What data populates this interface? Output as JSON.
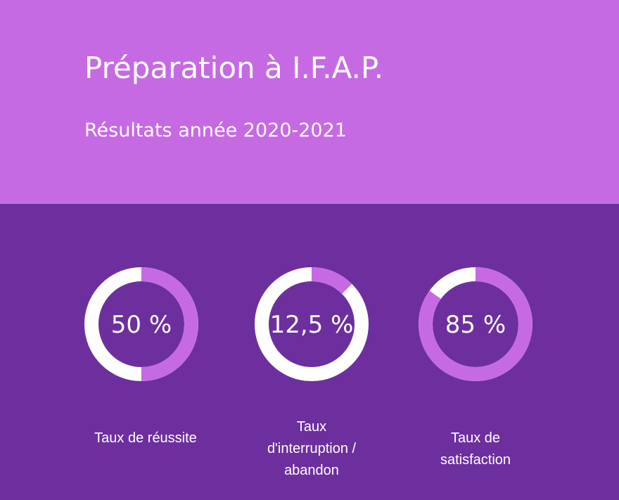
{
  "header": {
    "title": "Préparation à I.F.A.P.",
    "subtitle": "Résultats année 2020-2021"
  },
  "colors": {
    "header_bg": "#c66ae4",
    "body_bg": "#6d2f9e",
    "ring_fill": "#c66ae4",
    "ring_track": "#ffffff",
    "text": "#ffffff"
  },
  "chart_data": {
    "type": "pie",
    "title": "",
    "items": [
      {
        "value": 50,
        "display": "50 %",
        "label": "Taux de réussite",
        "label_lines": [
          "Taux de réussite"
        ]
      },
      {
        "value": 12.5,
        "display": "12,5 %",
        "label": "Taux d'interruption / abandon",
        "label_lines": [
          "Taux",
          "d'interruption /",
          "abandon"
        ]
      },
      {
        "value": 85,
        "display": "85 %",
        "label": "Taux de satisfaction",
        "label_lines": [
          "Taux de",
          "satisfaction"
        ]
      }
    ]
  }
}
